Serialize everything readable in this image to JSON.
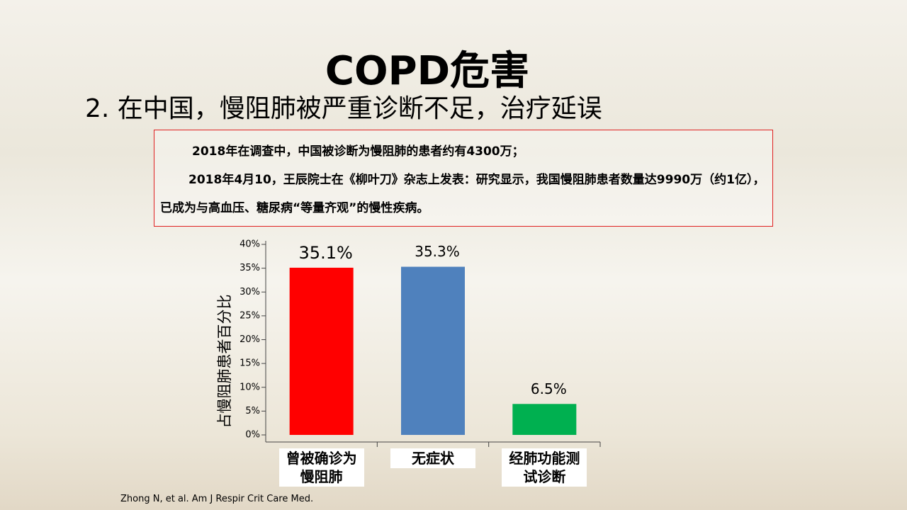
{
  "slide": {
    "title": "COPD危害",
    "subtitle": "2. 在中国，慢阻肺被严重诊断不足，治疗延误",
    "paragraphs": [
      "2018年在调查中，中国被诊断为慢阻肺的患者约有4300万；",
      "2018年4月10，王辰院士在《柳叶刀》杂志上发表：研究显示，我国慢阻肺患者数量达9990万（约1亿），已成为与高血压、糖尿病“等量齐观”的慢性疾病。"
    ],
    "citation": "Zhong N, et al.  Am J Respir Crit Care Med."
  },
  "chart_data": {
    "type": "bar",
    "y_label": "占慢阻肺患者百分比",
    "categories": [
      "曾被确诊为慢阻肺",
      "无症状",
      "经肺功能测试诊断"
    ],
    "values": [
      35.1,
      35.3,
      6.5
    ],
    "value_labels": [
      "35.1%",
      "35.3%",
      "6.5%"
    ],
    "colors": [
      "#ff0000",
      "#4f81bd",
      "#00b050"
    ],
    "ylim": [
      0,
      40
    ],
    "yticks": [
      {
        "value": 0,
        "label": "0%"
      },
      {
        "value": 5,
        "label": "5%"
      },
      {
        "value": 10,
        "label": "10%"
      },
      {
        "value": 15,
        "label": "15%"
      },
      {
        "value": 20,
        "label": "20%"
      },
      {
        "value": 25,
        "label": "25%"
      },
      {
        "value": 30,
        "label": "30%"
      },
      {
        "value": 35,
        "label": "35%"
      },
      {
        "value": 40,
        "label": "40%"
      }
    ],
    "grid": false
  }
}
